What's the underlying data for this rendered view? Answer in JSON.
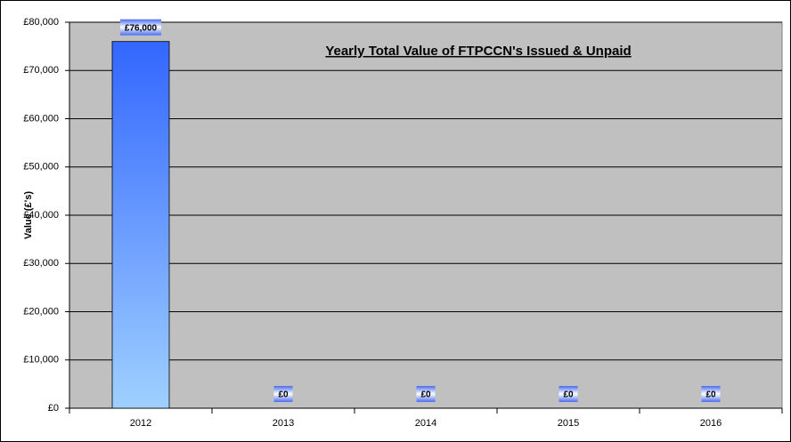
{
  "chart_data": {
    "type": "bar",
    "title": "Yearly Total Value of FTPCCN's Issued & Unpaid",
    "y_label": "Value (£'s)",
    "categories": [
      "2012",
      "2013",
      "2014",
      "2015",
      "2016"
    ],
    "values": [
      76000,
      0,
      0,
      0,
      0
    ],
    "value_labels": [
      "£76,000",
      "£0",
      "£0",
      "£0",
      "£0"
    ],
    "color": "#3366ff",
    "ylim": [
      0,
      80000
    ],
    "yticks": [
      {
        "value": 0,
        "label": "£0"
      },
      {
        "value": 10000,
        "label": "£10,000"
      },
      {
        "value": 20000,
        "label": "£20,000"
      },
      {
        "value": 30000,
        "label": "£30,000"
      },
      {
        "value": 40000,
        "label": "£40,000"
      },
      {
        "value": 50000,
        "label": "£50,000"
      },
      {
        "value": 60000,
        "label": "£60,000"
      },
      {
        "value": 70000,
        "label": "£70,000"
      },
      {
        "value": 80000,
        "label": "£80,000"
      }
    ],
    "grid": true
  }
}
